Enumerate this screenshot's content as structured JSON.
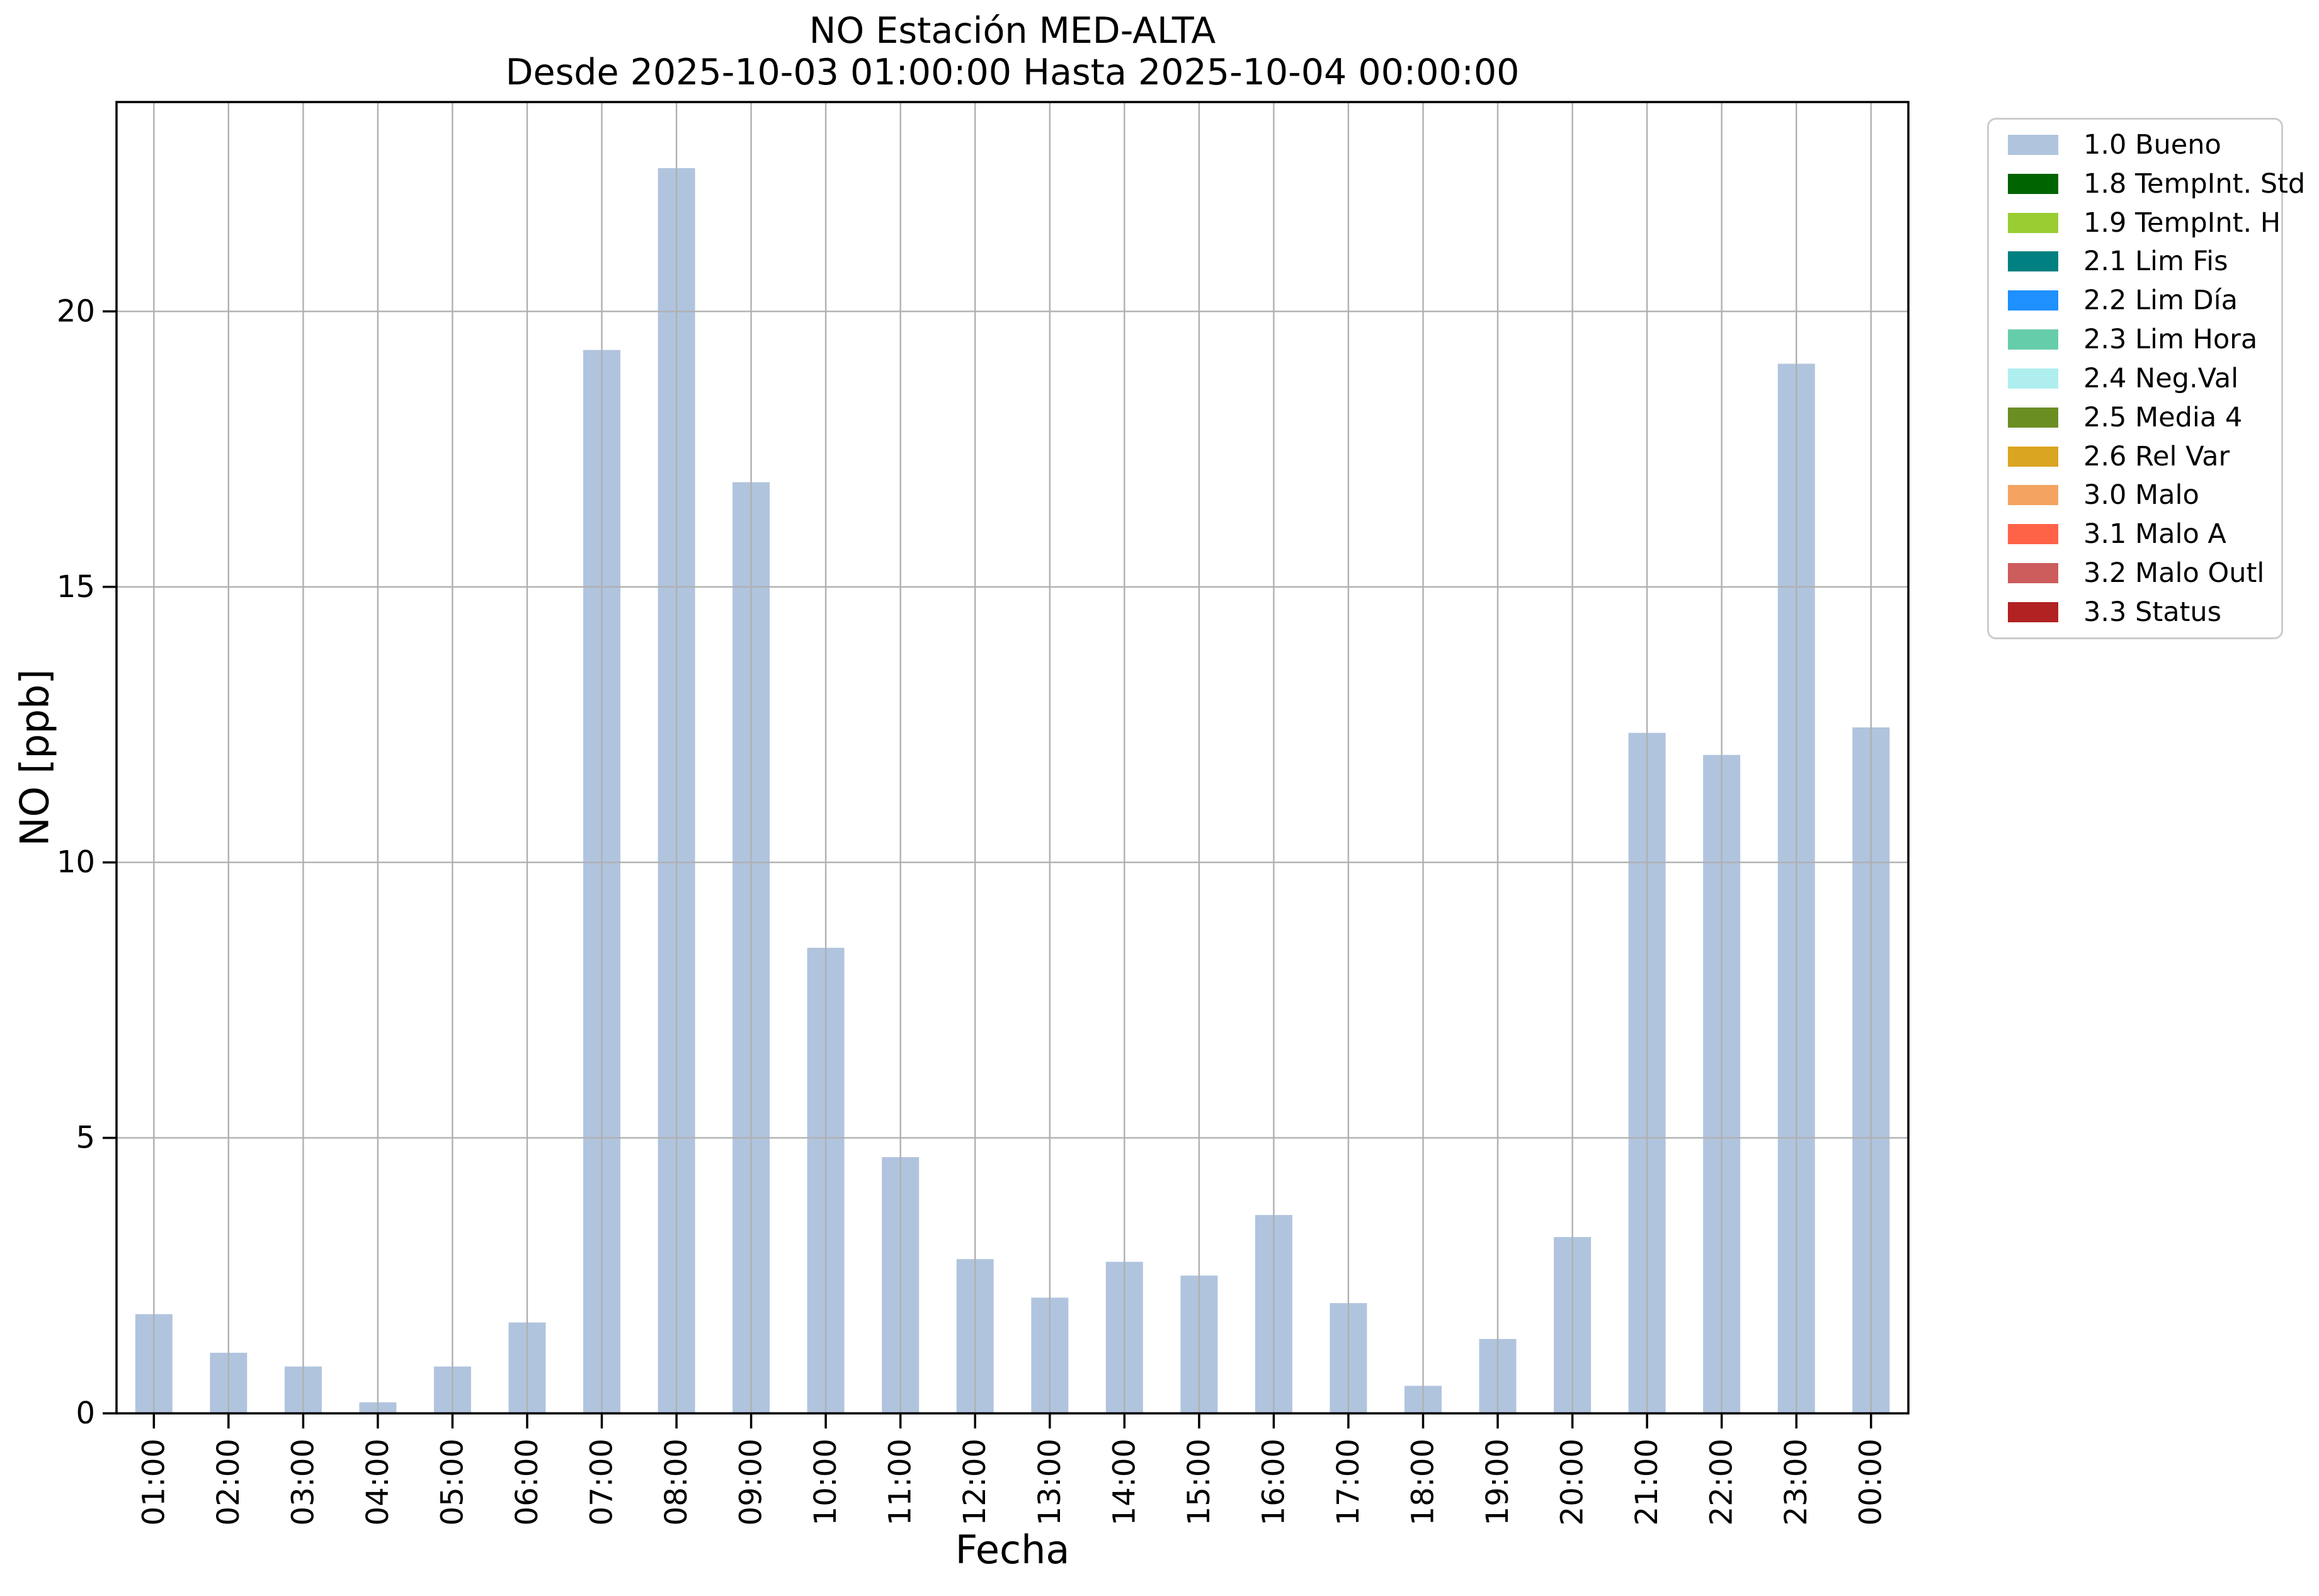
{
  "figure": {
    "title": "NO Estación MED-ALTA",
    "subtitle": "Desde 2025-10-03 01:00:00 Hasta 2025-10-04 00:00:00"
  },
  "chart_data": {
    "type": "bar",
    "title": "NO Estación MED-ALTA",
    "subtitle": "Desde 2025-10-03 01:00:00 Hasta 2025-10-04 00:00:00",
    "xlabel": "Fecha",
    "ylabel": "NO [ppb]",
    "categories": [
      "01:00",
      "02:00",
      "03:00",
      "04:00",
      "05:00",
      "06:00",
      "07:00",
      "08:00",
      "09:00",
      "10:00",
      "11:00",
      "12:00",
      "13:00",
      "14:00",
      "15:00",
      "16:00",
      "17:00",
      "18:00",
      "19:00",
      "20:00",
      "21:00",
      "22:00",
      "23:00",
      "00:00"
    ],
    "series": [
      {
        "name": "1.0 Bueno",
        "color": "#b0c4de",
        "values": [
          1.8,
          1.1,
          0.85,
          0.2,
          0.85,
          1.65,
          19.3,
          22.6,
          16.9,
          8.45,
          4.65,
          2.8,
          2.1,
          2.75,
          2.5,
          3.6,
          2.0,
          0.5,
          1.35,
          3.2,
          12.35,
          11.95,
          19.05,
          12.45
        ]
      }
    ],
    "ylim": [
      0,
      23.8
    ],
    "yticks": [
      0,
      5,
      10,
      15,
      20
    ],
    "grid": true,
    "grid_color": "#b0b0b0",
    "axis_color": "#000000",
    "legend_position": "outside-right",
    "legend": [
      {
        "label": "1.0 Bueno",
        "color": "#b0c4de"
      },
      {
        "label": "1.8 TempInt. Std",
        "color": "#006400"
      },
      {
        "label": "1.9 TempInt. H",
        "color": "#9acd32"
      },
      {
        "label": "2.1 Lim Fis",
        "color": "#008080"
      },
      {
        "label": "2.2 Lim Día",
        "color": "#1e90ff"
      },
      {
        "label": "2.3 Lim Hora",
        "color": "#66cdaa"
      },
      {
        "label": "2.4 Neg.Val",
        "color": "#afeeee"
      },
      {
        "label": "2.5 Media 4",
        "color": "#6b8e23"
      },
      {
        "label": "2.6 Rel Var",
        "color": "#daa520"
      },
      {
        "label": "3.0 Malo",
        "color": "#f4a460"
      },
      {
        "label": "3.1 Malo A",
        "color": "#ff6347"
      },
      {
        "label": "3.2 Malo Outl",
        "color": "#cd5c5c"
      },
      {
        "label": "3.3 Status",
        "color": "#b22222"
      }
    ]
  }
}
